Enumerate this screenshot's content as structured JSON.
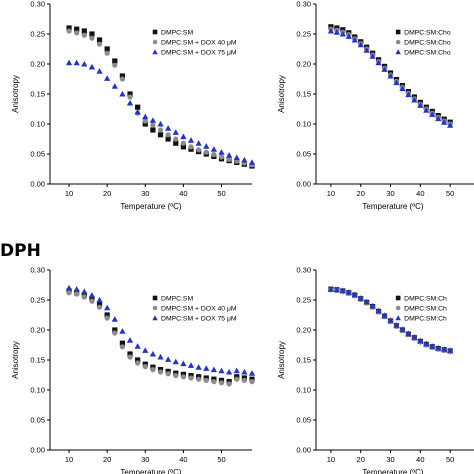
{
  "figure_label": "DPH",
  "colors": {
    "series_black": "#111111",
    "series_gray": "#8c8c8c",
    "series_blue": "#2233cc"
  },
  "chart_data": [
    {
      "type": "scatter",
      "title": "",
      "xlabel": "Temperature (ºC)",
      "ylabel": "Anisotropy",
      "xlim": [
        5,
        58
      ],
      "ylim": [
        0,
        0.3
      ],
      "xticks": [
        10,
        20,
        30,
        40,
        50
      ],
      "yticks": [
        0.0,
        0.05,
        0.1,
        0.15,
        0.2,
        0.25,
        0.3
      ],
      "xtick_labels": [
        "10",
        "20",
        "30",
        "40",
        "50"
      ],
      "ytick_labels": [
        "0.00",
        "0.05",
        "0.10",
        "0.15",
        "0.20",
        "0.25",
        "0.30"
      ],
      "legend_position": "top-right",
      "series": [
        {
          "name": "DMPC:SM",
          "marker": "square",
          "color": "#111111",
          "x": [
            10,
            12,
            14,
            16,
            18,
            20,
            22,
            24,
            26,
            28,
            30,
            32,
            34,
            36,
            38,
            40,
            42,
            44,
            46,
            48,
            50,
            52,
            54,
            56,
            58
          ],
          "y": [
            0.26,
            0.258,
            0.255,
            0.25,
            0.24,
            0.225,
            0.205,
            0.18,
            0.15,
            0.128,
            0.1,
            0.09,
            0.082,
            0.075,
            0.068,
            0.062,
            0.058,
            0.054,
            0.05,
            0.046,
            0.042,
            0.039,
            0.036,
            0.033,
            0.03
          ]
        },
        {
          "name": "DMPC:SM + DOX 40 μM",
          "marker": "circle",
          "color": "#8c8c8c",
          "x": [
            10,
            12,
            14,
            16,
            18,
            20,
            22,
            24,
            26,
            28,
            30,
            32,
            34,
            36,
            38,
            40,
            42,
            44,
            46,
            48,
            50,
            52,
            54,
            56,
            58
          ],
          "y": [
            0.255,
            0.252,
            0.248,
            0.243,
            0.233,
            0.218,
            0.198,
            0.175,
            0.145,
            0.118,
            0.105,
            0.098,
            0.09,
            0.082,
            0.075,
            0.068,
            0.062,
            0.057,
            0.053,
            0.049,
            0.045,
            0.041,
            0.038,
            0.035,
            0.032
          ]
        },
        {
          "name": "DMPC:SM + DOX 75 μM",
          "marker": "triangle",
          "color": "#2233cc",
          "x": [
            10,
            12,
            14,
            16,
            18,
            20,
            22,
            24,
            26,
            28,
            30,
            32,
            34,
            36,
            38,
            40,
            42,
            44,
            46,
            48,
            50,
            52,
            54,
            56,
            58
          ],
          "y": [
            0.202,
            0.202,
            0.2,
            0.195,
            0.188,
            0.176,
            0.163,
            0.15,
            0.135,
            0.12,
            0.112,
            0.106,
            0.1,
            0.093,
            0.086,
            0.079,
            0.073,
            0.068,
            0.063,
            0.058,
            0.053,
            0.048,
            0.044,
            0.04,
            0.036
          ]
        }
      ]
    },
    {
      "type": "scatter",
      "title": "",
      "xlabel": "Temperature (ºC)",
      "ylabel": "Anisotropy",
      "xlim": [
        5,
        58
      ],
      "ylim": [
        0,
        0.3
      ],
      "xticks": [
        10,
        20,
        30,
        40,
        50
      ],
      "yticks": [
        0.0,
        0.05,
        0.1,
        0.15,
        0.2,
        0.25,
        0.3
      ],
      "xtick_labels": [
        "10",
        "20",
        "30",
        "40",
        "50"
      ],
      "ytick_labels": [
        "0.00",
        "0.05",
        "0.10",
        "0.15",
        "0.20",
        "0.25",
        "0.30"
      ],
      "legend_position": "top-right",
      "series": [
        {
          "name": "DMPC:SM:Cho",
          "marker": "square",
          "color": "#111111",
          "x": [
            10,
            12,
            14,
            16,
            18,
            20,
            22,
            24,
            26,
            28,
            30,
            32,
            34,
            36,
            38,
            40,
            42,
            44,
            46,
            48,
            50
          ],
          "y": [
            0.262,
            0.26,
            0.257,
            0.252,
            0.245,
            0.237,
            0.228,
            0.218,
            0.207,
            0.196,
            0.185,
            0.174,
            0.164,
            0.154,
            0.145,
            0.136,
            0.128,
            0.121,
            0.114,
            0.108,
            0.103
          ]
        },
        {
          "name": "DMPC:SM:Cho",
          "marker": "circle",
          "color": "#8c8c8c",
          "x": [
            10,
            12,
            14,
            16,
            18,
            20,
            22,
            24,
            26,
            28,
            30,
            32,
            34,
            36,
            38,
            40,
            42,
            44,
            46,
            48,
            50
          ],
          "y": [
            0.258,
            0.256,
            0.253,
            0.249,
            0.242,
            0.234,
            0.225,
            0.215,
            0.204,
            0.193,
            0.182,
            0.171,
            0.161,
            0.151,
            0.142,
            0.133,
            0.125,
            0.118,
            0.111,
            0.105,
            0.1
          ]
        },
        {
          "name": "DMPC:SM:Cho",
          "marker": "triangle",
          "color": "#2233cc",
          "x": [
            10,
            12,
            14,
            16,
            18,
            20,
            22,
            24,
            26,
            28,
            30,
            32,
            34,
            36,
            38,
            40,
            42,
            44,
            46,
            48,
            50
          ],
          "y": [
            0.255,
            0.253,
            0.25,
            0.246,
            0.24,
            0.232,
            0.223,
            0.213,
            0.202,
            0.191,
            0.18,
            0.169,
            0.159,
            0.149,
            0.14,
            0.131,
            0.123,
            0.116,
            0.109,
            0.103,
            0.098
          ]
        }
      ]
    },
    {
      "type": "scatter",
      "title": "",
      "xlabel": "Temperature (ºC)",
      "ylabel": "Anisotropy",
      "xlim": [
        5,
        58
      ],
      "ylim": [
        0,
        0.3
      ],
      "xticks": [
        10,
        20,
        30,
        40,
        50
      ],
      "yticks": [
        0.0,
        0.05,
        0.1,
        0.15,
        0.2,
        0.25,
        0.3
      ],
      "xtick_labels": [
        "10",
        "20",
        "30",
        "40",
        "50"
      ],
      "ytick_labels": [
        "0.00",
        "0.05",
        "0.10",
        "0.15",
        "0.20",
        "0.25",
        "0.30"
      ],
      "legend_position": "top-right",
      "series": [
        {
          "name": "DMPC:SM",
          "marker": "square",
          "color": "#111111",
          "x": [
            10,
            12,
            14,
            16,
            18,
            20,
            22,
            24,
            26,
            28,
            30,
            32,
            34,
            36,
            38,
            40,
            42,
            44,
            46,
            48,
            50,
            52,
            54,
            56,
            58
          ],
          "y": [
            0.265,
            0.262,
            0.258,
            0.252,
            0.243,
            0.225,
            0.2,
            0.178,
            0.16,
            0.15,
            0.143,
            0.138,
            0.134,
            0.131,
            0.128,
            0.126,
            0.124,
            0.122,
            0.12,
            0.118,
            0.116,
            0.114,
            0.122,
            0.12,
            0.118
          ]
        },
        {
          "name": "DMPC:SM + DOX 40 μM",
          "marker": "circle",
          "color": "#8c8c8c",
          "x": [
            10,
            12,
            14,
            16,
            18,
            20,
            22,
            24,
            26,
            28,
            30,
            32,
            34,
            36,
            38,
            40,
            42,
            44,
            46,
            48,
            50,
            52,
            54,
            56,
            58
          ],
          "y": [
            0.262,
            0.26,
            0.255,
            0.248,
            0.238,
            0.22,
            0.195,
            0.172,
            0.155,
            0.145,
            0.139,
            0.134,
            0.13,
            0.127,
            0.124,
            0.122,
            0.12,
            0.118,
            0.116,
            0.114,
            0.112,
            0.11,
            0.118,
            0.116,
            0.114
          ]
        },
        {
          "name": "DMPC:SM + DOX 75 μM",
          "marker": "triangle",
          "color": "#2233cc",
          "x": [
            10,
            12,
            14,
            16,
            18,
            20,
            22,
            24,
            26,
            28,
            30,
            32,
            34,
            36,
            38,
            40,
            42,
            44,
            46,
            48,
            50,
            52,
            54,
            56,
            58
          ],
          "y": [
            0.27,
            0.268,
            0.264,
            0.258,
            0.25,
            0.237,
            0.218,
            0.198,
            0.183,
            0.173,
            0.166,
            0.16,
            0.155,
            0.151,
            0.147,
            0.144,
            0.141,
            0.138,
            0.136,
            0.134,
            0.132,
            0.13,
            0.132,
            0.13,
            0.128
          ]
        }
      ]
    },
    {
      "type": "scatter",
      "title": "",
      "xlabel": "Temperature (ºC)",
      "ylabel": "Anisotropy",
      "xlim": [
        5,
        58
      ],
      "ylim": [
        0,
        0.3
      ],
      "xticks": [
        10,
        20,
        30,
        40,
        50
      ],
      "yticks": [
        0.0,
        0.05,
        0.1,
        0.15,
        0.2,
        0.25,
        0.3
      ],
      "xtick_labels": [
        "10",
        "20",
        "30",
        "40",
        "50"
      ],
      "ytick_labels": [
        "0.00",
        "0.05",
        "0.10",
        "0.15",
        "0.20",
        "0.25",
        "0.30"
      ],
      "legend_position": "top-right",
      "series": [
        {
          "name": "DMPC:SM:Ch",
          "marker": "square",
          "color": "#111111",
          "x": [
            10,
            12,
            14,
            16,
            18,
            20,
            22,
            24,
            26,
            28,
            30,
            32,
            34,
            36,
            38,
            40,
            42,
            44,
            46,
            48,
            50
          ],
          "y": [
            0.268,
            0.267,
            0.265,
            0.262,
            0.258,
            0.252,
            0.246,
            0.239,
            0.231,
            0.223,
            0.215,
            0.207,
            0.2,
            0.193,
            0.187,
            0.181,
            0.176,
            0.172,
            0.169,
            0.167,
            0.165
          ]
        },
        {
          "name": "DMPC:SM:Ch",
          "marker": "circle",
          "color": "#8c8c8c",
          "x": [
            10,
            12,
            14,
            16,
            18,
            20,
            22,
            24,
            26,
            28,
            30,
            32,
            34,
            36,
            38,
            40,
            42,
            44,
            46,
            48,
            50
          ],
          "y": [
            0.267,
            0.266,
            0.264,
            0.261,
            0.257,
            0.251,
            0.245,
            0.238,
            0.23,
            0.222,
            0.214,
            0.206,
            0.199,
            0.192,
            0.186,
            0.18,
            0.175,
            0.171,
            0.168,
            0.166,
            0.164
          ]
        },
        {
          "name": "DMPC:SM:Ch",
          "marker": "triangle",
          "color": "#2233cc",
          "x": [
            10,
            12,
            14,
            16,
            18,
            20,
            22,
            24,
            26,
            28,
            30,
            32,
            34,
            36,
            38,
            40,
            42,
            44,
            46,
            48,
            50
          ],
          "y": [
            0.268,
            0.267,
            0.266,
            0.263,
            0.259,
            0.253,
            0.247,
            0.24,
            0.232,
            0.224,
            0.216,
            0.208,
            0.201,
            0.194,
            0.188,
            0.182,
            0.177,
            0.173,
            0.17,
            0.168,
            0.166
          ]
        }
      ]
    }
  ]
}
